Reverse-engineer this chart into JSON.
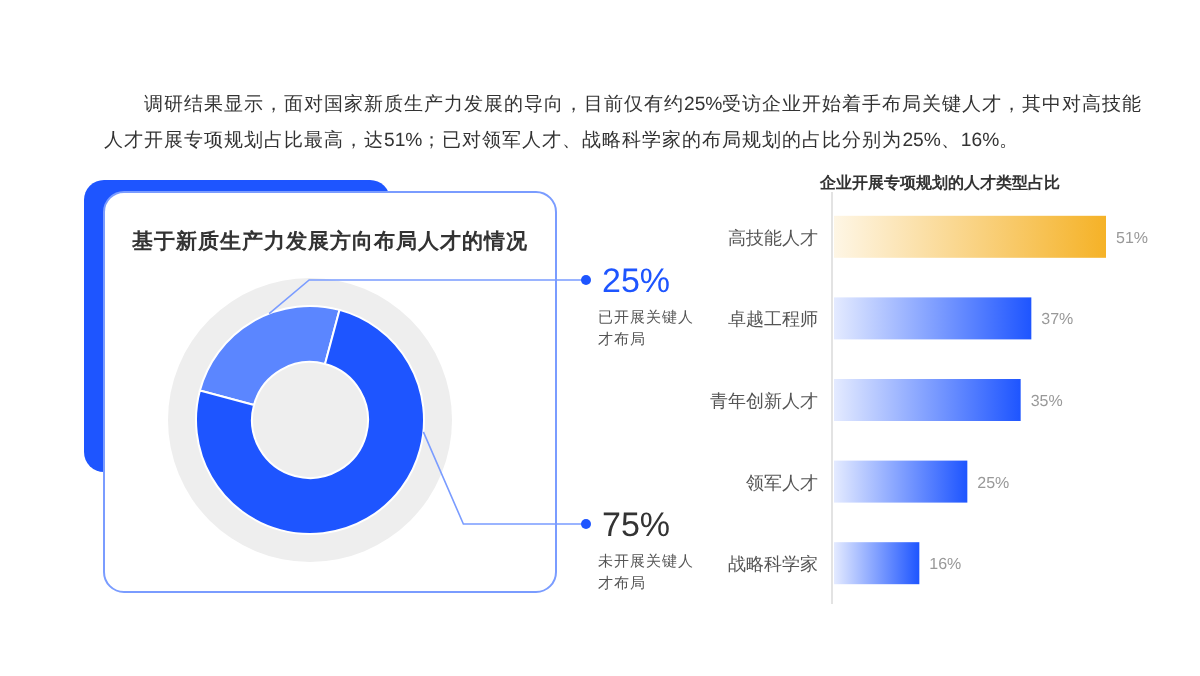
{
  "chart_data": [
    {
      "type": "donut",
      "title": "基于新质生产力发展方向布局人才的情况",
      "annotations": [
        "调研结果显示，面对国家新质生产力发展的导向，目前仅有约25%受访企业开始着手布局关键人才，其中对高技能人才开展专项规划占比最高，达51%；已对领军人才、战略科学家的布局规划的占比分别为25%、16%。"
      ],
      "categories": [
        "已开展关键人才布局",
        "未开展关键人才布局"
      ],
      "values": [
        25,
        75
      ],
      "colors": [
        "#5b86ff",
        "#1e55ff"
      ],
      "value_labels": [
        "25%",
        "75%"
      ]
    },
    {
      "type": "bar",
      "orientation": "horizontal",
      "title": "企业开展专项规划的人才类型占比",
      "categories": [
        "高技能人才",
        "卓越工程师",
        "青年创新人才",
        "领军人才",
        "战略科学家"
      ],
      "values": [
        51,
        37,
        35,
        25,
        16
      ],
      "colors": [
        "#f5b227",
        "#1e55ff",
        "#1e55ff",
        "#1e55ff",
        "#1e55ff"
      ],
      "value_labels": [
        "51%",
        "37%",
        "35%",
        "25%",
        "16%"
      ]
    }
  ]
}
